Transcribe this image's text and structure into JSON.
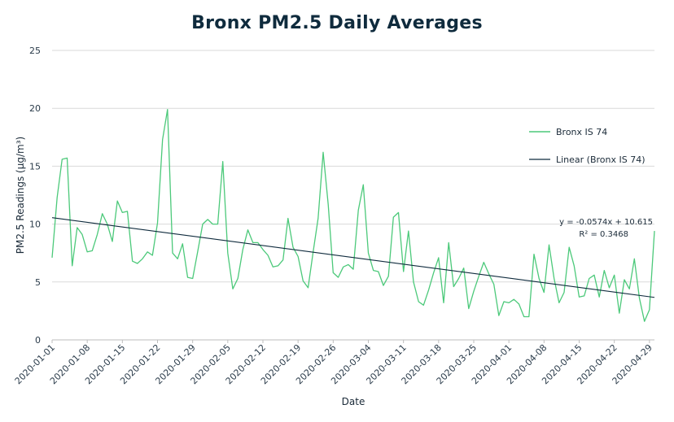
{
  "chart_data": {
    "type": "line",
    "title": "Bronx PM2.5 Daily Averages",
    "xlabel": "Date",
    "ylabel": "PM2.5 Readings (µg/m³)",
    "ylim": [
      0,
      25
    ],
    "yticks": [
      0,
      5,
      10,
      15,
      20,
      25
    ],
    "grid": true,
    "x_tick_labels": [
      "2020-01-01",
      "2020-01-08",
      "2020-01-15",
      "2020-01-22",
      "2020-01-29",
      "2020-02-05",
      "2020-02-12",
      "2020-02-19",
      "2020-02-26",
      "2020-03-04",
      "2020-03-11",
      "2020-03-18",
      "2020-03-25",
      "2020-04-01",
      "2020-04-08",
      "2020-04-15",
      "2020-04-22",
      "2020-04-29"
    ],
    "series": [
      {
        "name": "Bronx IS 74",
        "color": "#4cc97a",
        "values": [
          7.1,
          12.3,
          15.6,
          15.7,
          6.4,
          9.7,
          9.1,
          7.6,
          7.7,
          9.1,
          10.9,
          10.0,
          8.5,
          12.0,
          11.0,
          11.1,
          6.8,
          6.6,
          7.0,
          7.6,
          7.3,
          10.1,
          17.3,
          19.9,
          7.5,
          7.0,
          8.3,
          5.4,
          5.3,
          7.6,
          10.0,
          10.4,
          10.0,
          10.0,
          15.4,
          7.5,
          4.4,
          5.3,
          7.8,
          9.5,
          8.4,
          8.4,
          7.8,
          7.3,
          6.3,
          6.4,
          6.9,
          10.5,
          8.0,
          7.2,
          5.1,
          4.5,
          7.6,
          10.5,
          16.2,
          11.7,
          5.8,
          5.4,
          6.3,
          6.5,
          6.1,
          11.2,
          13.4,
          7.5,
          6.0,
          5.9,
          4.7,
          5.5,
          10.6,
          11.0,
          5.9,
          9.4,
          5.0,
          3.3,
          3.0,
          4.3,
          5.8,
          7.1,
          3.2,
          8.4,
          4.6,
          5.3,
          6.2,
          2.7,
          4.2,
          5.5,
          6.7,
          5.7,
          4.8,
          2.1,
          3.3,
          3.2,
          3.5,
          3.1,
          2.0,
          2.0,
          7.4,
          5.3,
          4.1,
          8.2,
          5.3,
          3.2,
          4.1,
          8.0,
          6.4,
          3.7,
          3.8,
          5.3,
          5.6,
          3.7,
          6.0,
          4.5,
          5.6,
          2.3,
          5.2,
          4.4,
          7.0,
          3.6,
          1.6,
          2.6,
          9.4
        ]
      },
      {
        "name": "Linear (Bronx IS 74)",
        "color": "#0f2b3d",
        "trendline": {
          "slope": -0.0574,
          "intercept": 10.615
        }
      }
    ],
    "equation_text": "y = -0.0574x + 10.615",
    "r2_text": "R² = 0.3468",
    "legend_position": "right"
  }
}
